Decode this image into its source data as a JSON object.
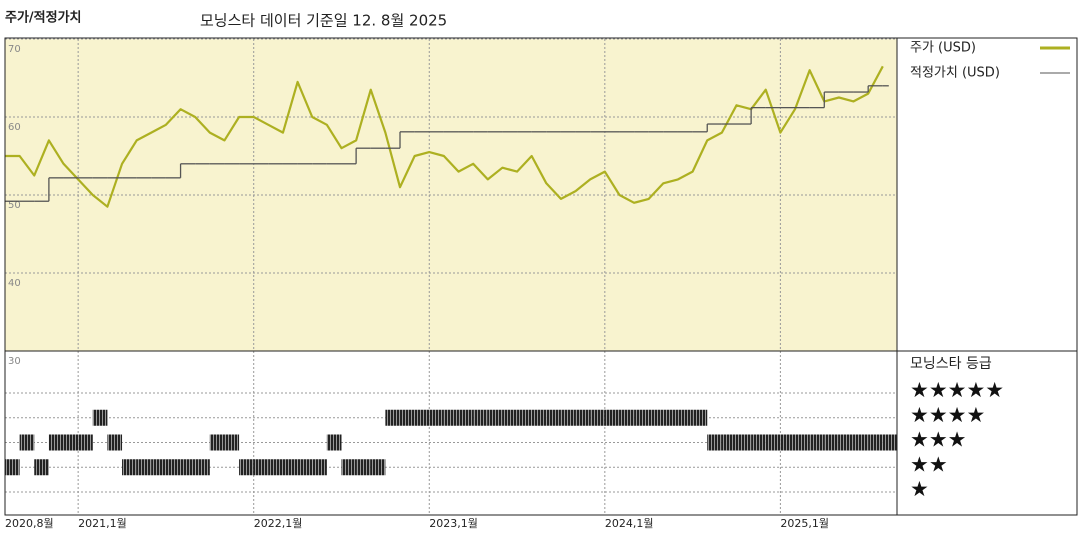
{
  "chart_data": {
    "type": "line",
    "title": "주가/적정가치",
    "subtitle": "모닝스타 데이터 기준일 12. 8월 2025",
    "categories": [
      "2020-08",
      "2020-09",
      "2020-10",
      "2020-11",
      "2020-12",
      "2021-01",
      "2021-02",
      "2021-03",
      "2021-04",
      "2021-05",
      "2021-06",
      "2021-07",
      "2021-08",
      "2021-09",
      "2021-10",
      "2021-11",
      "2021-12",
      "2022-01",
      "2022-02",
      "2022-03",
      "2022-04",
      "2022-05",
      "2022-06",
      "2022-07",
      "2022-08",
      "2022-09",
      "2022-10",
      "2022-11",
      "2022-12",
      "2023-01",
      "2023-02",
      "2023-03",
      "2023-04",
      "2023-05",
      "2023-06",
      "2023-07",
      "2023-08",
      "2023-09",
      "2023-10",
      "2023-11",
      "2023-12",
      "2024-01",
      "2024-02",
      "2024-03",
      "2024-04",
      "2024-05",
      "2024-06",
      "2024-07",
      "2024-08",
      "2024-09",
      "2024-10",
      "2024-11",
      "2024-12",
      "2025-01",
      "2025-02",
      "2025-03",
      "2025-04",
      "2025-05",
      "2025-06",
      "2025-07",
      "2025-08"
    ],
    "series": [
      {
        "name": "주가 (USD)",
        "color": "#adb021",
        "style": "line",
        "values": [
          55,
          55,
          52.5,
          57,
          54,
          52,
          50,
          48.5,
          54,
          57,
          58,
          59,
          61,
          60,
          58,
          57,
          60,
          60,
          59,
          58,
          64.5,
          60,
          59,
          56,
          57,
          63.5,
          58,
          51,
          55,
          55.5,
          55,
          53,
          54,
          52,
          53.5,
          53,
          55,
          51.5,
          49.5,
          50.5,
          52,
          53,
          50,
          49,
          49.5,
          51.5,
          52,
          53,
          57,
          58,
          61.5,
          61,
          63.5,
          58,
          61,
          66,
          62,
          62.5,
          62,
          63,
          66.5
        ]
      },
      {
        "name": "적정가치 (USD)",
        "color": "#555555",
        "style": "step",
        "values": [
          49.2,
          49.2,
          49.2,
          52.2,
          52.2,
          52.2,
          52.2,
          52.2,
          52.2,
          52.2,
          52.2,
          52.2,
          54,
          54,
          54,
          54,
          54,
          54,
          54,
          54,
          54,
          54,
          54,
          54,
          56,
          56,
          56,
          58.1,
          58.1,
          58.1,
          58.1,
          58.1,
          58.1,
          58.1,
          58.1,
          58.1,
          58.1,
          58.1,
          58.1,
          58.1,
          58.1,
          58.1,
          58.1,
          58.1,
          58.1,
          58.1,
          58.1,
          58.1,
          59.1,
          59.1,
          59.1,
          61.2,
          61.2,
          61.2,
          61.2,
          61.2,
          63.2,
          63.2,
          63.2,
          64,
          64
        ]
      }
    ],
    "ylim": [
      30,
      70
    ],
    "yticks": [
      30,
      40,
      50,
      60,
      70
    ],
    "grid": true,
    "xticks": [
      {
        "value": "2020-08",
        "label": "2020,8월"
      },
      {
        "value": "2021-01",
        "label": "2021,1월"
      },
      {
        "value": "2022-01",
        "label": "2022,1월"
      },
      {
        "value": "2023-01",
        "label": "2023,1월"
      },
      {
        "value": "2024-01",
        "label": "2024,1월"
      },
      {
        "value": "2025-01",
        "label": "2025,1월"
      }
    ],
    "background": "#f8f3cf",
    "rating": {
      "title": "모닝스타 등급",
      "levels": [
        {
          "value": 5,
          "label": "★★★★★"
        },
        {
          "value": 4,
          "label": "★★★★"
        },
        {
          "value": 3,
          "label": "★★★"
        },
        {
          "value": 2,
          "label": "★★"
        },
        {
          "value": 1,
          "label": "★"
        }
      ],
      "values": [
        2,
        3,
        2,
        3,
        3,
        3,
        4,
        3,
        2,
        2,
        2,
        2,
        2,
        2,
        3,
        3,
        2,
        2,
        2,
        2,
        2,
        2,
        3,
        2,
        2,
        2,
        4,
        4,
        4,
        4,
        4,
        4,
        4,
        4,
        4,
        4,
        4,
        4,
        4,
        4,
        4,
        4,
        4,
        4,
        4,
        4,
        4,
        4,
        3,
        3,
        3,
        3,
        3,
        3,
        3,
        3,
        3,
        3,
        3,
        3,
        3
      ]
    }
  }
}
